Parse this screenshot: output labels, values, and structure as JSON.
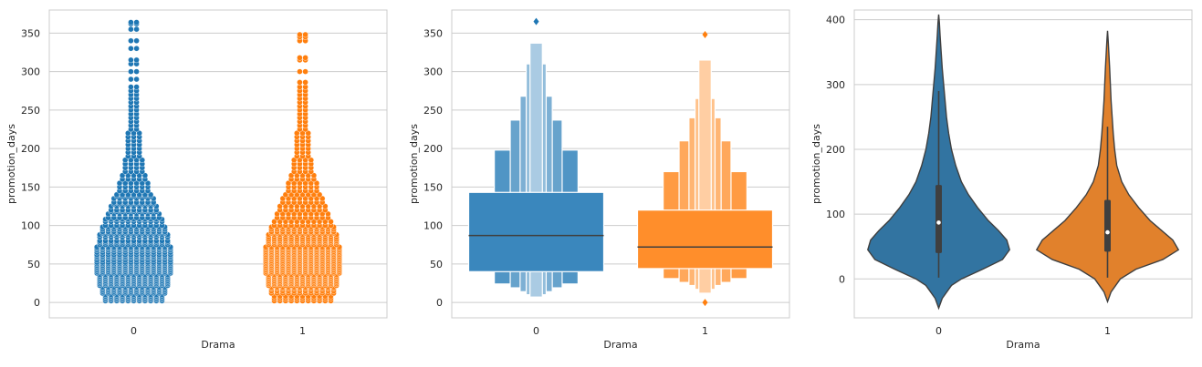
{
  "colors": {
    "blue": "#1f77b4",
    "orange": "#ff7f0e",
    "violin_blue": "#3274a1",
    "violin_orange": "#e1812c",
    "grid": "#cccccc",
    "frame": "#cccccc",
    "median_line": "#3f3f3f"
  },
  "chart_data": [
    {
      "type": "scatter",
      "subtype": "swarm",
      "xlabel": "Drama",
      "ylabel": "promotion_days",
      "categories": [
        "0",
        "1"
      ],
      "ylim": [
        -20,
        380
      ],
      "yticks": [
        0,
        50,
        100,
        150,
        200,
        250,
        300,
        350
      ],
      "grid": "horizontal",
      "series": [
        {
          "category": "0",
          "color": "#1f77b4",
          "values": [
            2,
            4,
            6,
            8,
            10,
            12,
            14,
            16,
            18,
            20,
            22,
            24,
            26,
            28,
            30,
            32,
            34,
            36,
            38,
            40,
            42,
            44,
            46,
            48,
            50,
            52,
            55,
            58,
            60,
            62,
            65,
            68,
            70,
            72,
            75,
            78,
            80,
            85,
            88,
            90,
            92,
            95,
            98,
            100,
            105,
            108,
            110,
            115,
            118,
            120,
            125,
            128,
            130,
            135,
            138,
            140,
            145,
            150,
            155,
            160,
            165,
            170,
            175,
            180,
            185,
            190,
            195,
            200,
            205,
            210,
            215,
            220,
            225,
            230,
            235,
            240,
            245,
            250,
            255,
            260,
            265,
            270,
            275,
            280,
            290,
            300,
            310,
            315,
            330,
            340,
            355,
            362,
            364
          ]
        },
        {
          "category": "1",
          "color": "#ff7f0e",
          "values": [
            2,
            5,
            8,
            12,
            15,
            18,
            20,
            22,
            24,
            26,
            28,
            30,
            32,
            34,
            36,
            38,
            40,
            42,
            44,
            46,
            48,
            50,
            52,
            54,
            56,
            58,
            60,
            62,
            64,
            66,
            68,
            70,
            72,
            75,
            78,
            80,
            82,
            85,
            88,
            90,
            92,
            95,
            98,
            100,
            105,
            110,
            115,
            120,
            125,
            130,
            135,
            140,
            145,
            150,
            155,
            160,
            165,
            170,
            175,
            180,
            185,
            190,
            195,
            200,
            205,
            210,
            215,
            220,
            225,
            230,
            235,
            240,
            245,
            250,
            255,
            260,
            265,
            270,
            275,
            280,
            286,
            300,
            315,
            318,
            340,
            345,
            348
          ]
        }
      ]
    },
    {
      "type": "boxen",
      "xlabel": "Drama",
      "ylabel": "promotion_days",
      "categories": [
        "0",
        "1"
      ],
      "ylim": [
        -20,
        380
      ],
      "yticks": [
        0,
        50,
        100,
        150,
        200,
        250,
        300,
        350
      ],
      "grid": "horizontal",
      "boxes": [
        {
          "category": "0",
          "color": "#1f77b4",
          "median": 87,
          "levels": [
            [
              40,
              143
            ],
            [
              24,
              198
            ],
            [
              19,
              237
            ],
            [
              14,
              268
            ],
            [
              10,
              310
            ],
            [
              7,
              337
            ]
          ],
          "outliers": [
            365
          ]
        },
        {
          "category": "1",
          "color": "#ff7f0e",
          "median": 72,
          "levels": [
            [
              44,
              120
            ],
            [
              31,
              170
            ],
            [
              26,
              210
            ],
            [
              22,
              240
            ],
            [
              17,
              265
            ],
            [
              12,
              315
            ]
          ],
          "outliers": [
            0,
            348
          ]
        }
      ]
    },
    {
      "type": "violin",
      "xlabel": "Drama",
      "ylabel": "promotion_days",
      "categories": [
        "0",
        "1"
      ],
      "ylim": [
        -60,
        415
      ],
      "yticks": [
        0,
        100,
        200,
        300,
        400
      ],
      "grid": "horizontal",
      "violins": [
        {
          "category": "0",
          "color": "#3274a1",
          "median": 87,
          "q1": 40,
          "q3": 145,
          "whisker_low": 2,
          "whisker_high": 290,
          "density": [
            [
              -45,
              0
            ],
            [
              -30,
              0.05
            ],
            [
              -10,
              0.18
            ],
            [
              0,
              0.32
            ],
            [
              15,
              0.62
            ],
            [
              30,
              0.9
            ],
            [
              45,
              1.0
            ],
            [
              60,
              0.96
            ],
            [
              75,
              0.84
            ],
            [
              90,
              0.7
            ],
            [
              110,
              0.55
            ],
            [
              130,
              0.42
            ],
            [
              150,
              0.32
            ],
            [
              175,
              0.24
            ],
            [
              200,
              0.18
            ],
            [
              225,
              0.14
            ],
            [
              250,
              0.11
            ],
            [
              275,
              0.09
            ],
            [
              300,
              0.07
            ],
            [
              325,
              0.05
            ],
            [
              350,
              0.035
            ],
            [
              375,
              0.02
            ],
            [
              395,
              0.01
            ],
            [
              408,
              0
            ]
          ]
        },
        {
          "category": "1",
          "color": "#e1812c",
          "median": 72,
          "q1": 42,
          "q3": 122,
          "whisker_low": 2,
          "whisker_high": 235,
          "density": [
            [
              -35,
              0
            ],
            [
              -20,
              0.05
            ],
            [
              0,
              0.18
            ],
            [
              15,
              0.4
            ],
            [
              30,
              0.78
            ],
            [
              45,
              1.0
            ],
            [
              60,
              0.92
            ],
            [
              75,
              0.76
            ],
            [
              90,
              0.6
            ],
            [
              110,
              0.44
            ],
            [
              130,
              0.3
            ],
            [
              150,
              0.2
            ],
            [
              175,
              0.13
            ],
            [
              200,
              0.1
            ],
            [
              225,
              0.08
            ],
            [
              250,
              0.065
            ],
            [
              275,
              0.05
            ],
            [
              300,
              0.04
            ],
            [
              325,
              0.03
            ],
            [
              350,
              0.018
            ],
            [
              370,
              0.008
            ],
            [
              383,
              0
            ]
          ]
        }
      ]
    }
  ]
}
